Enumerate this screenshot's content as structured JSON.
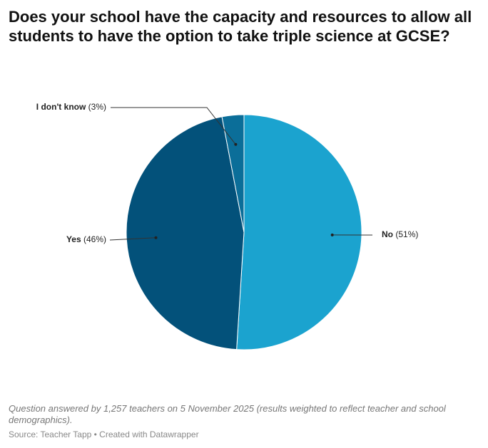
{
  "chart_data": {
    "type": "pie",
    "title": "Does your school have the capacity and resources to allow all students to have the option to take triple science at GCSE?",
    "categories": [
      "No",
      "Yes",
      "I don't know"
    ],
    "values": [
      51,
      46,
      3
    ],
    "value_labels": [
      "(51%)",
      "(46%)",
      "(3%)"
    ],
    "colors": [
      "#1ba3cf",
      "#03517a",
      "#0b6e99"
    ],
    "notes": "Question answered by 1,257 teachers on 5 November 2025 (results weighted to reflect teacher and school demographics).",
    "source": "Source: Teacher Tapp • Created with Datawrapper"
  }
}
